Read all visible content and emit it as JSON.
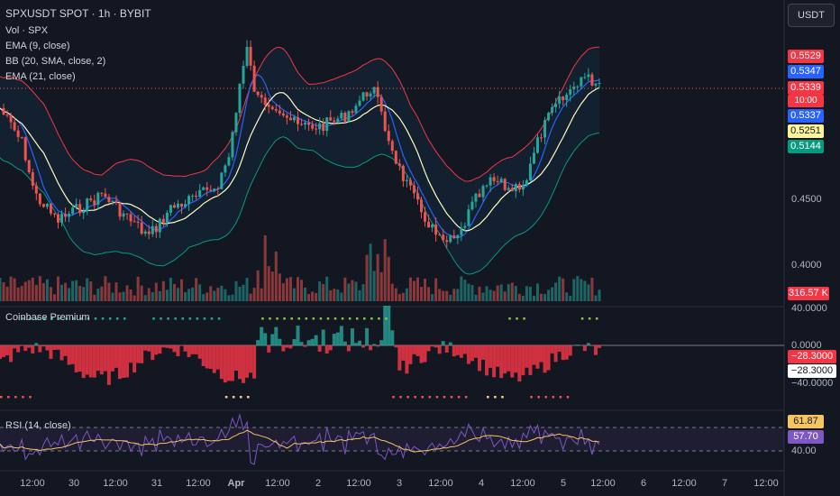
{
  "header": {
    "symbol_line": "SPXUSDT SPOT · 1h · BYBIT",
    "currency_button": "USDT"
  },
  "legend": {
    "vol": "Vol · SPX",
    "ema9": "EMA (9, close)",
    "bb": "BB (20, SMA, close, 2)",
    "ema21": "EMA (21, close)",
    "coinbase": "Coinbase Premium",
    "rsi": "RSI (14, close)"
  },
  "price_axis": {
    "ticks": [
      "0.4500",
      "0.4000"
    ],
    "tags": {
      "bb_upper": "0.5529",
      "ema9": "0.5347",
      "last_price": "0.5339",
      "countdown": "10:00",
      "bb_basis": "0.5337",
      "ema21": "0.5251",
      "bb_lower": "0.5144",
      "volume": "316.57 K"
    }
  },
  "premium_axis": {
    "ticks": [
      "40.0000",
      "0.0000",
      "−40.0000"
    ],
    "tag_red": "−28.3000",
    "tag_white": "−28.3000"
  },
  "rsi_axis": {
    "tag_rsi": "61.87",
    "tag_ma": "57.70",
    "tick": "40.00"
  },
  "time_axis": [
    "12:00",
    "30",
    "12:00",
    "31",
    "12:00",
    "Apr",
    "12:00",
    "2",
    "12:00",
    "3",
    "12:00",
    "4",
    "12:00",
    "5",
    "12:00",
    "6",
    "12:00",
    "7",
    "12:00"
  ],
  "colors": {
    "bg": "#131722",
    "up": "#26a69a",
    "down": "#ef5350",
    "bb_upper": "#f23645",
    "bb_lower": "#089981",
    "ema9": "#2962ff",
    "ema21": "#fff9c4",
    "rsi": "#7e57c2",
    "rsi_ma": "#f7c55f"
  }
}
